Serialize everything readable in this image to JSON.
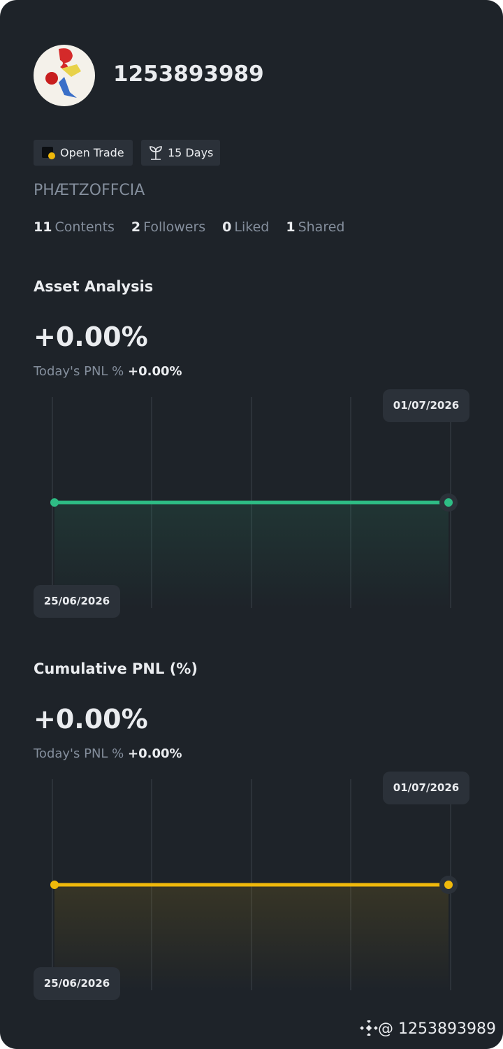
{
  "profile": {
    "name": "1253893989",
    "badges": [
      "Open Trade",
      "15 Days"
    ],
    "display_name": "PHÆTZOFFCIA",
    "stats": [
      {
        "value": 11,
        "label": "Contents"
      },
      {
        "value": 2,
        "label": "Followers"
      },
      {
        "value": 0,
        "label": "Liked"
      },
      {
        "value": 1,
        "label": "Shared"
      }
    ]
  },
  "charts": [
    {
      "type": "line",
      "title": "Asset Analysis",
      "headline": "+0.00%",
      "sub_label": "Today's PNL %",
      "sub_value": "+0.00%",
      "x": [
        "25/06/2026",
        "01/07/2026"
      ],
      "values": [
        0,
        0
      ],
      "color": "#2ebd85"
    },
    {
      "type": "line",
      "title": "Cumulative PNL (%)",
      "headline": "+0.00%",
      "sub_label": "Today's PNL %",
      "sub_value": "+0.00%",
      "x": [
        "25/06/2026",
        "01/07/2026"
      ],
      "values": [
        0,
        0
      ],
      "color": "#f0b90b"
    }
  ],
  "footer": "@ 1253893989"
}
